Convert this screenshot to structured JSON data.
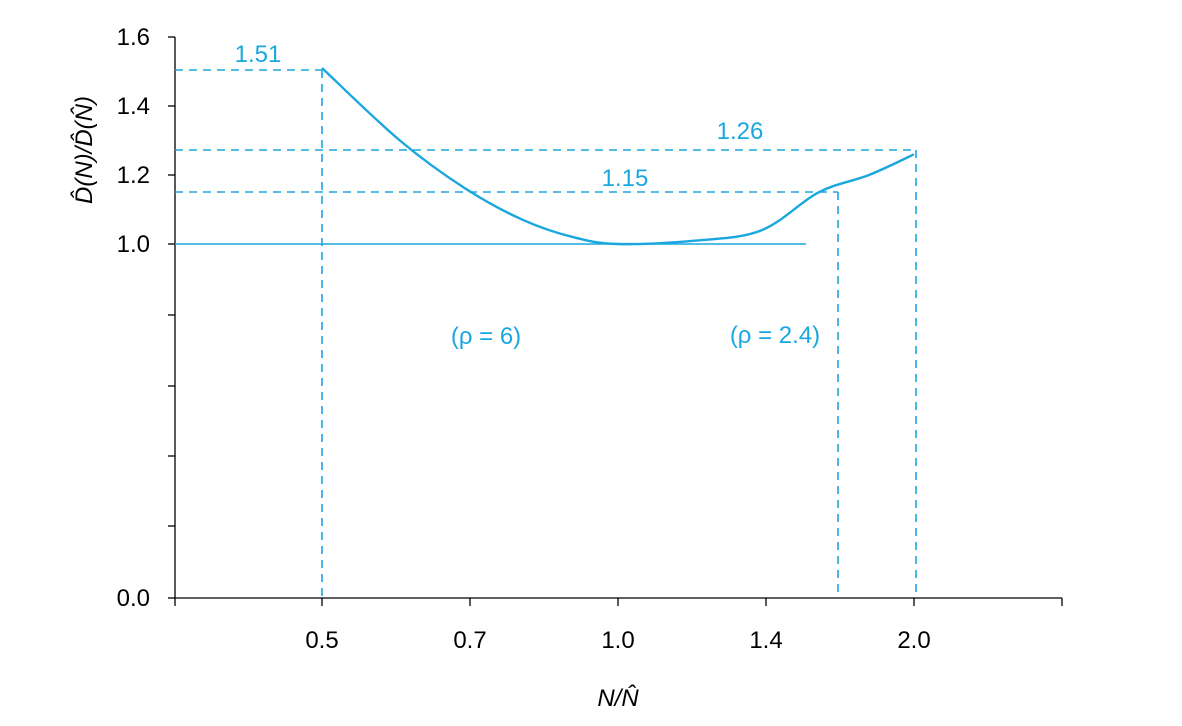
{
  "chart_data": {
    "type": "line",
    "xlabel": "N/N̂",
    "ylabel": "D̂(N)/D̂(N̂)",
    "x_ticks": [
      "0.5",
      "0.7",
      "1.0",
      "1.4",
      "2.0"
    ],
    "y_ticks": [
      "0.0",
      "1.0",
      "1.2",
      "1.4",
      "1.6"
    ],
    "x_scale": "log",
    "grid": false,
    "series": [
      {
        "x": [
          0.5,
          0.6,
          0.7,
          0.8,
          0.9,
          1.0,
          1.2,
          1.4,
          1.6,
          1.8,
          2.0
        ],
        "y": [
          1.51,
          1.3,
          1.16,
          1.07,
          1.02,
          1.0,
          1.01,
          1.04,
          1.15,
          1.2,
          1.26
        ]
      }
    ],
    "reference_line": {
      "y": 1.0,
      "x_from": 0.28,
      "x_to": 1.55
    },
    "annotations": [
      {
        "text": "1.51",
        "x": 0.5,
        "y": 1.51
      },
      {
        "text": "1.26",
        "x": 2.0,
        "y": 1.26
      },
      {
        "text": "1.15",
        "x": 1.6,
        "y": 1.15
      },
      {
        "text": "(ρ = 6)"
      },
      {
        "text": "(ρ = 2.4)"
      }
    ],
    "colors": {
      "series": "#1aa7e0",
      "axes": "#000000"
    }
  }
}
